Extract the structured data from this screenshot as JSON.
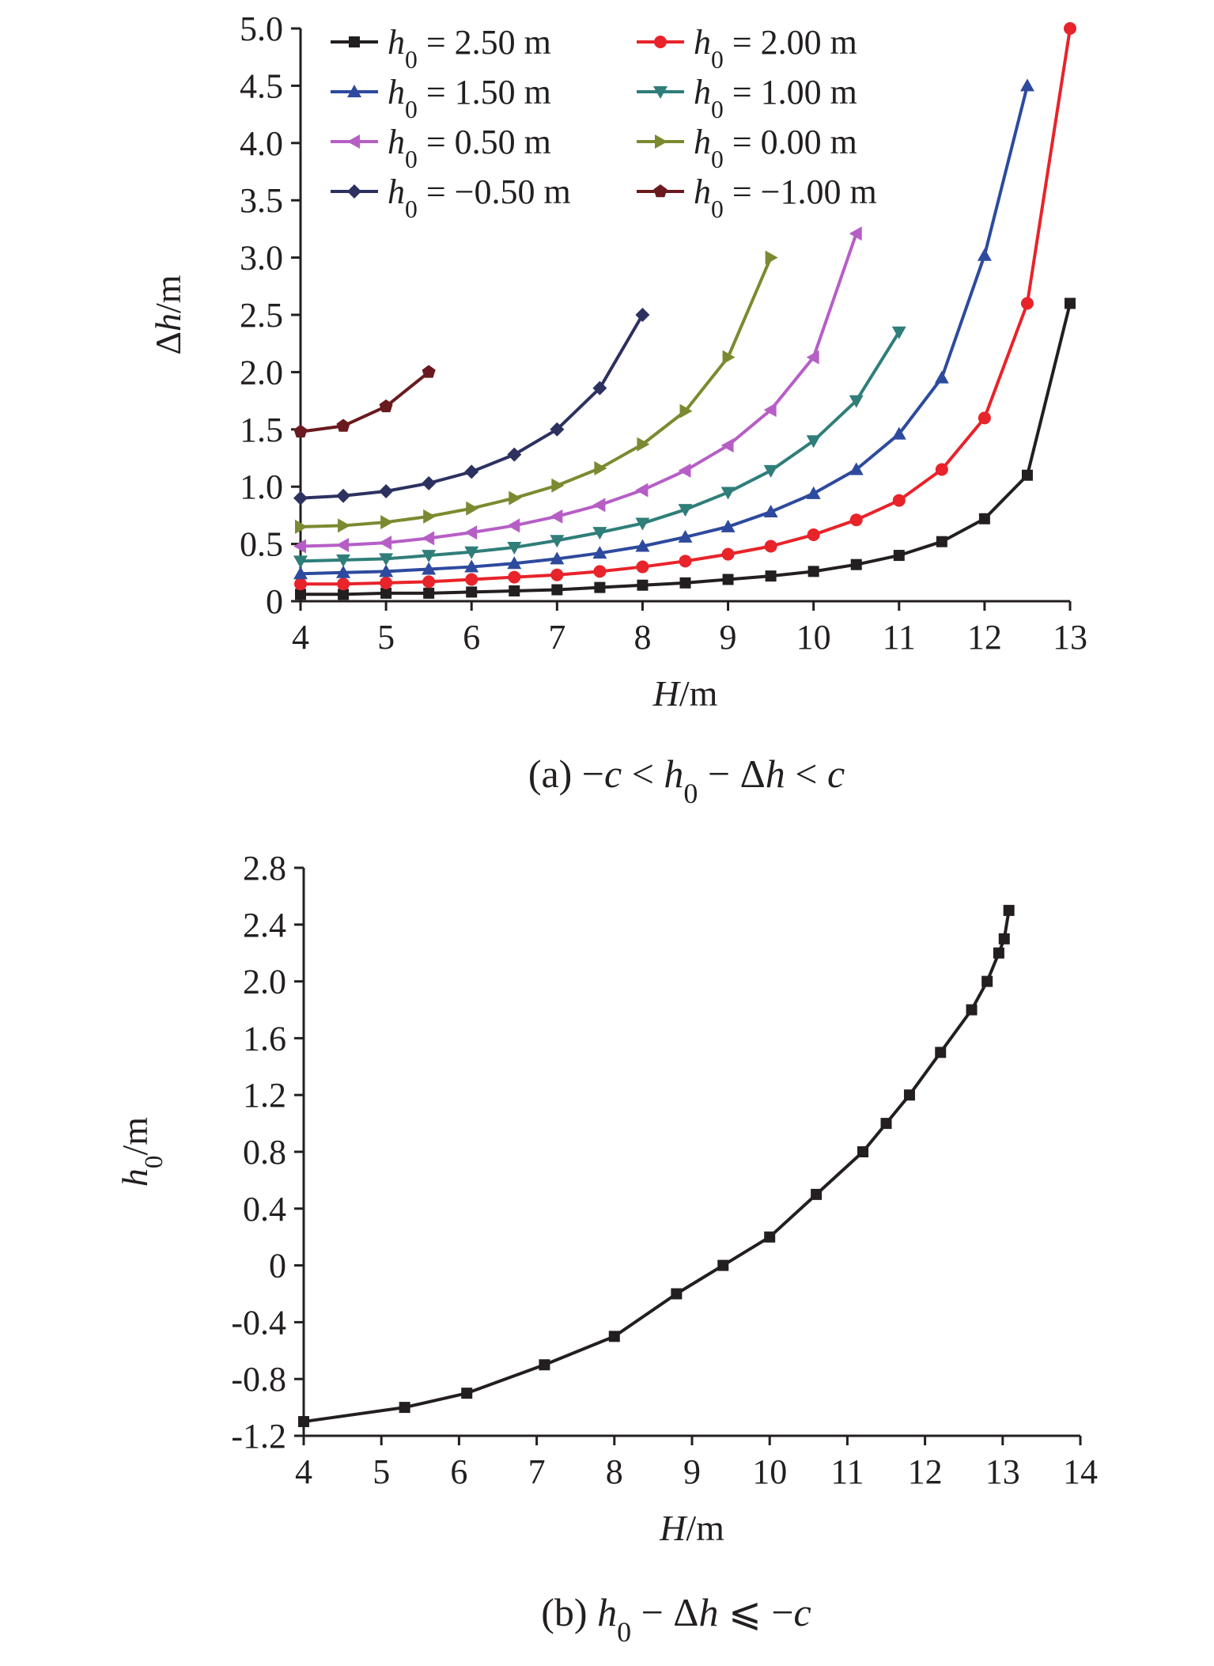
{
  "chart_data": [
    {
      "type": "line",
      "panel": "a",
      "caption": "(a) −c < h0 − Δh < c",
      "xlabel": "H/m",
      "ylabel": "Δh/m",
      "xlim": [
        4,
        13
      ],
      "ylim": [
        0,
        5.0
      ],
      "xticks": [
        "4",
        "5",
        "6",
        "7",
        "8",
        "9",
        "10",
        "11",
        "12",
        "13"
      ],
      "yticks": [
        "0",
        "0.5",
        "1.0",
        "1.5",
        "2.0",
        "2.5",
        "3.0",
        "3.5",
        "4.0",
        "4.5",
        "5.0"
      ],
      "grid": false,
      "legend_position": "top-left",
      "series": [
        {
          "name": "h0 = 2.50 m",
          "color": "#231f20",
          "marker": "square",
          "x": [
            4,
            4.5,
            5,
            5.5,
            6,
            6.5,
            7,
            7.5,
            8,
            8.5,
            9,
            9.5,
            10,
            10.5,
            11,
            11.5,
            12,
            12.5,
            13
          ],
          "y": [
            0.06,
            0.06,
            0.07,
            0.07,
            0.08,
            0.09,
            0.1,
            0.12,
            0.14,
            0.16,
            0.19,
            0.22,
            0.26,
            0.32,
            0.4,
            0.52,
            0.72,
            1.1,
            2.6
          ]
        },
        {
          "name": "h0 = 2.00 m",
          "color": "#e8232a",
          "marker": "circle",
          "x": [
            4,
            4.5,
            5,
            5.5,
            6,
            6.5,
            7,
            7.5,
            8,
            8.5,
            9,
            9.5,
            10,
            10.5,
            11,
            11.5,
            12,
            12.5,
            13
          ],
          "y": [
            0.15,
            0.15,
            0.16,
            0.17,
            0.19,
            0.21,
            0.23,
            0.26,
            0.3,
            0.35,
            0.41,
            0.48,
            0.58,
            0.71,
            0.88,
            1.15,
            1.6,
            2.6,
            5.0
          ]
        },
        {
          "name": "h0 = 1.50 m",
          "color": "#2e4a9e",
          "marker": "triangle-up",
          "x": [
            4,
            4.5,
            5,
            5.5,
            6,
            6.5,
            7,
            7.5,
            8,
            8.5,
            9,
            9.5,
            10,
            10.5,
            11,
            11.5,
            12,
            12.5
          ],
          "y": [
            0.24,
            0.25,
            0.26,
            0.28,
            0.3,
            0.33,
            0.37,
            0.42,
            0.48,
            0.56,
            0.65,
            0.78,
            0.94,
            1.15,
            1.46,
            1.95,
            3.02,
            4.5
          ]
        },
        {
          "name": "h0 = 1.00 m",
          "color": "#2f7e7a",
          "marker": "triangle-down",
          "x": [
            4,
            4.5,
            5,
            5.5,
            6,
            6.5,
            7,
            7.5,
            8,
            8.5,
            9,
            9.5,
            10,
            10.5,
            11
          ],
          "y": [
            0.35,
            0.36,
            0.37,
            0.4,
            0.43,
            0.47,
            0.53,
            0.6,
            0.68,
            0.8,
            0.95,
            1.14,
            1.4,
            1.75,
            2.35
          ]
        },
        {
          "name": "h0 = 0.50 m",
          "color": "#b65ec6",
          "marker": "triangle-left",
          "x": [
            4,
            4.5,
            5,
            5.5,
            6,
            6.5,
            7,
            7.5,
            8,
            8.5,
            9,
            9.5,
            10,
            10.5
          ],
          "y": [
            0.48,
            0.49,
            0.51,
            0.55,
            0.6,
            0.66,
            0.74,
            0.84,
            0.97,
            1.14,
            1.36,
            1.67,
            2.13,
            3.21
          ]
        },
        {
          "name": "h0 = 0.00 m",
          "color": "#7b8a30",
          "marker": "triangle-right",
          "x": [
            4,
            4.5,
            5,
            5.5,
            6,
            6.5,
            7,
            7.5,
            8,
            8.5,
            9,
            9.5
          ],
          "y": [
            0.65,
            0.66,
            0.69,
            0.74,
            0.81,
            0.9,
            1.01,
            1.16,
            1.37,
            1.66,
            2.13,
            3.0
          ]
        },
        {
          "name": "h0 = −0.50 m",
          "color": "#2c3160",
          "marker": "diamond",
          "x": [
            4,
            4.5,
            5,
            5.5,
            6,
            6.5,
            7,
            7.5,
            8
          ],
          "y": [
            0.9,
            0.92,
            0.96,
            1.03,
            1.13,
            1.28,
            1.5,
            1.86,
            2.5
          ]
        },
        {
          "name": "h0 = −1.00 m",
          "color": "#6a1a1e",
          "marker": "pentagon",
          "x": [
            4,
            4.5,
            5,
            5.5
          ],
          "y": [
            1.48,
            1.53,
            1.7,
            2.0
          ]
        }
      ]
    },
    {
      "type": "line",
      "panel": "b",
      "caption": "(b)  h0 − Δh ⩽ −c",
      "xlabel": "H/m",
      "ylabel": "h0/m",
      "xlim": [
        4,
        14
      ],
      "ylim": [
        -1.2,
        2.8
      ],
      "xticks": [
        "4",
        "5",
        "6",
        "7",
        "8",
        "9",
        "10",
        "11",
        "12",
        "13",
        "14"
      ],
      "yticks": [
        "-1.2",
        "-0.8",
        "-0.4",
        "0",
        "0.4",
        "0.8",
        "1.2",
        "1.6",
        "2.0",
        "2.4",
        "2.8"
      ],
      "grid": false,
      "series": [
        {
          "color": "#231f20",
          "marker": "square",
          "x": [
            4.0,
            5.3,
            6.1,
            7.1,
            8.0,
            8.8,
            9.4,
            10.0,
            10.6,
            11.2,
            11.5,
            11.8,
            12.2,
            12.6,
            12.8,
            12.95,
            13.02,
            13.08
          ],
          "y": [
            -1.1,
            -1.0,
            -0.9,
            -0.7,
            -0.5,
            -0.2,
            0.0,
            0.2,
            0.5,
            0.8,
            1.0,
            1.2,
            1.5,
            1.8,
            2.0,
            2.2,
            2.3,
            2.5
          ]
        }
      ]
    }
  ]
}
